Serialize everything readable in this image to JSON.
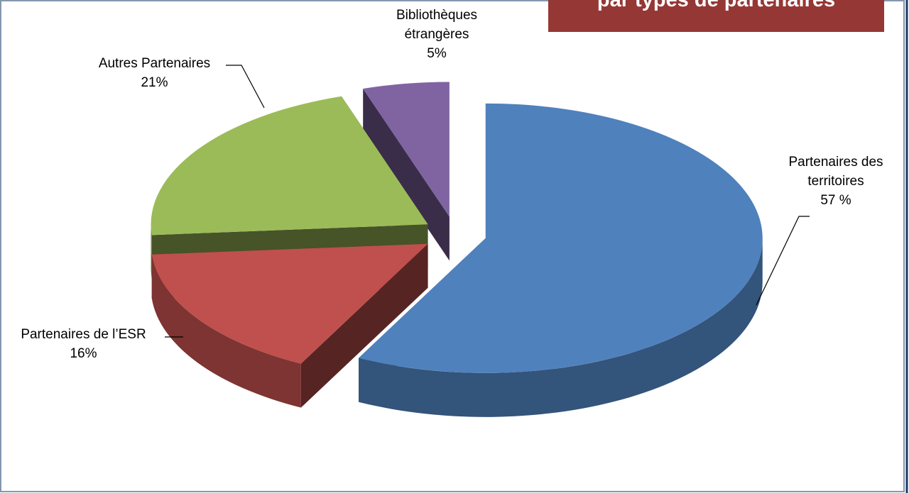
{
  "chart_data": {
    "type": "pie3d",
    "title": "par types de partenaires",
    "categories": [
      "Partenaires des territoires",
      "Partenaires de l’ESR",
      "Autres Partenaires",
      "Bibliothèques étrangères"
    ],
    "values": [
      57,
      16,
      21,
      5
    ],
    "value_labels": [
      "57 %",
      "16%",
      "21%",
      "5%"
    ],
    "colors": [
      "#4f81bd",
      "#c0504d",
      "#9bbb59",
      "#8064a2"
    ]
  }
}
